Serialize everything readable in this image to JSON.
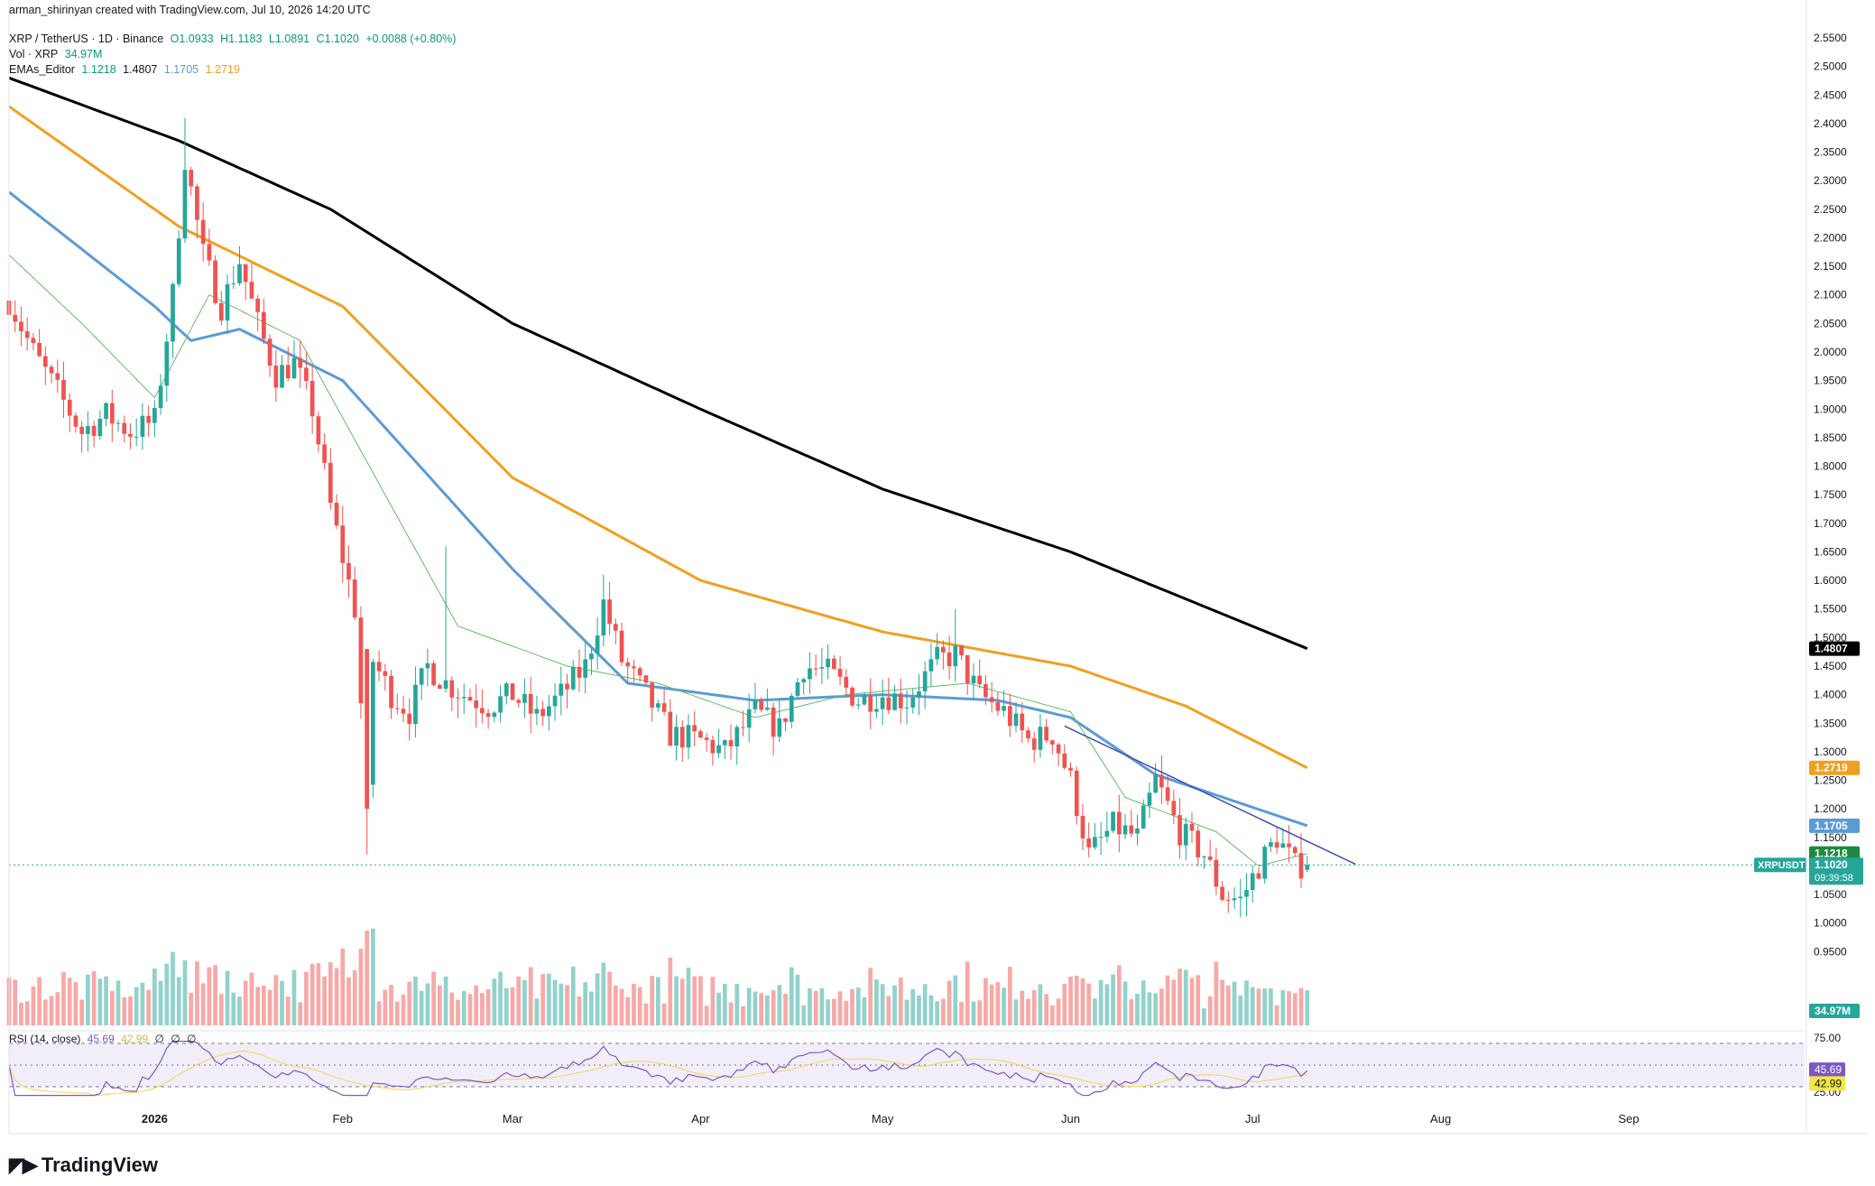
{
  "header": {
    "created_by": "arman_shirinyan created with TradingView.com, Jul 10, 2026 14:20 UTC",
    "symbol": "XRP / TetherUS · 1D · Binance",
    "ohlc": {
      "o": "O1.0933",
      "h": "H1.1183",
      "l": "L1.0891",
      "c": "C1.1020",
      "chg": "+0.0088 (+0.80%)"
    },
    "vol_label": "Vol · XRP",
    "vol_value": "34.97M",
    "emas_label": "EMAs_Editor",
    "emas_values": [
      "1.1218",
      "1.4807",
      "1.1705",
      "1.2719"
    ],
    "rsi_label": "RSI (14, close)",
    "rsi_value": "45.69",
    "rsi_ma_value": "42.99",
    "rsi_extra": [
      "∅",
      "∅",
      "∅"
    ]
  },
  "brand": "TradingView",
  "colors": {
    "up": "#26a69a",
    "down": "#ef5350",
    "ema_black": "#000000",
    "ema_orange": "#f0a020",
    "ema_blue": "#5b9bd5",
    "ema_green": "#66bb6a",
    "rsi": "#7e57c2",
    "rsi_ma": "#f5d76e",
    "trendline": "#3f51b5"
  },
  "chart_data": {
    "type": "candlestick",
    "symbol": "XRPUSDT",
    "price_axis": {
      "min": 0.9,
      "max": 2.55,
      "ticks": [
        "2.5500",
        "2.5000",
        "2.4500",
        "2.4000",
        "2.3500",
        "2.3000",
        "2.2500",
        "2.2000",
        "2.1500",
        "2.1000",
        "2.0500",
        "2.0000",
        "1.9500",
        "1.9000",
        "1.8500",
        "1.8000",
        "1.7500",
        "1.7000",
        "1.6500",
        "1.6000",
        "1.5500",
        "1.5000",
        "1.4500",
        "1.4000",
        "1.3500",
        "1.3000",
        "1.2500",
        "1.2000",
        "1.1500",
        "1.1000",
        "1.0500",
        "1.0000",
        "0.9500"
      ]
    },
    "time_axis": {
      "start": "2025-12-08",
      "end": "2026-09-30",
      "labels": [
        {
          "date": "2026-01-01",
          "label": "2026"
        },
        {
          "date": "2026-02-01",
          "label": "Feb"
        },
        {
          "date": "2026-03-01",
          "label": "Mar"
        },
        {
          "date": "2026-04-01",
          "label": "Apr"
        },
        {
          "date": "2026-05-01",
          "label": "May"
        },
        {
          "date": "2026-06-01",
          "label": "Jun"
        },
        {
          "date": "2026-07-01",
          "label": "Jul"
        },
        {
          "date": "2026-08-01",
          "label": "Aug"
        },
        {
          "date": "2026-09-01",
          "label": "Sep"
        }
      ]
    },
    "close_anchors": [
      [
        "2025-12-08",
        2.09
      ],
      [
        "2025-12-12",
        2.0
      ],
      [
        "2025-12-16",
        1.93
      ],
      [
        "2025-12-20",
        1.86
      ],
      [
        "2025-12-24",
        1.89
      ],
      [
        "2025-12-28",
        1.86
      ],
      [
        "2026-01-01",
        1.88
      ],
      [
        "2026-01-04",
        2.1
      ],
      [
        "2026-01-06",
        2.34
      ],
      [
        "2026-01-09",
        2.17
      ],
      [
        "2026-01-12",
        2.08
      ],
      [
        "2026-01-15",
        2.16
      ],
      [
        "2026-01-18",
        2.05
      ],
      [
        "2026-01-21",
        1.96
      ],
      [
        "2026-01-24",
        1.98
      ],
      [
        "2026-01-27",
        1.9
      ],
      [
        "2026-01-30",
        1.73
      ],
      [
        "2026-02-03",
        1.55
      ],
      [
        "2026-02-05",
        1.22
      ],
      [
        "2026-02-06",
        1.46
      ],
      [
        "2026-02-09",
        1.4
      ],
      [
        "2026-02-12",
        1.37
      ],
      [
        "2026-02-15",
        1.45
      ],
      [
        "2026-02-18",
        1.42
      ],
      [
        "2026-02-21",
        1.4
      ],
      [
        "2026-02-25",
        1.38
      ],
      [
        "2026-03-01",
        1.4
      ],
      [
        "2026-03-05",
        1.36
      ],
      [
        "2026-03-09",
        1.4
      ],
      [
        "2026-03-13",
        1.45
      ],
      [
        "2026-03-16",
        1.56
      ],
      [
        "2026-03-19",
        1.46
      ],
      [
        "2026-03-23",
        1.4
      ],
      [
        "2026-03-27",
        1.33
      ],
      [
        "2026-04-01",
        1.32
      ],
      [
        "2026-04-05",
        1.3
      ],
      [
        "2026-04-10",
        1.37
      ],
      [
        "2026-04-14",
        1.34
      ],
      [
        "2026-04-18",
        1.45
      ],
      [
        "2026-04-22",
        1.44
      ],
      [
        "2026-04-27",
        1.39
      ],
      [
        "2026-05-01",
        1.4
      ],
      [
        "2026-05-05",
        1.39
      ],
      [
        "2026-05-10",
        1.46
      ],
      [
        "2026-05-13",
        1.47
      ],
      [
        "2026-05-17",
        1.4
      ],
      [
        "2026-05-21",
        1.37
      ],
      [
        "2026-05-25",
        1.32
      ],
      [
        "2026-05-29",
        1.33
      ],
      [
        "2026-06-01",
        1.25
      ],
      [
        "2026-06-04",
        1.12
      ],
      [
        "2026-06-08",
        1.17
      ],
      [
        "2026-06-12",
        1.15
      ],
      [
        "2026-06-15",
        1.25
      ],
      [
        "2026-06-19",
        1.16
      ],
      [
        "2026-06-23",
        1.12
      ],
      [
        "2026-06-26",
        1.05
      ],
      [
        "2026-06-29",
        1.04
      ],
      [
        "2026-07-02",
        1.1
      ],
      [
        "2026-07-05",
        1.15
      ],
      [
        "2026-07-08",
        1.1
      ],
      [
        "2026-07-10",
        1.102
      ]
    ],
    "emas": [
      {
        "name": "EMA 200",
        "color": "#000000",
        "value": 1.4807,
        "anchors": [
          [
            "2025-12-08",
            2.48
          ],
          [
            "2026-01-05",
            2.37
          ],
          [
            "2026-01-30",
            2.25
          ],
          [
            "2026-03-01",
            2.05
          ],
          [
            "2026-04-01",
            1.9
          ],
          [
            "2026-05-01",
            1.76
          ],
          [
            "2026-06-01",
            1.65
          ],
          [
            "2026-07-10",
            1.4807
          ]
        ]
      },
      {
        "name": "EMA 100",
        "color": "#f0a020",
        "value": 1.2719,
        "anchors": [
          [
            "2025-12-08",
            2.43
          ],
          [
            "2026-01-05",
            2.22
          ],
          [
            "2026-02-01",
            2.08
          ],
          [
            "2026-03-01",
            1.78
          ],
          [
            "2026-04-01",
            1.6
          ],
          [
            "2026-05-01",
            1.51
          ],
          [
            "2026-06-01",
            1.45
          ],
          [
            "2026-06-20",
            1.38
          ],
          [
            "2026-07-10",
            1.2719
          ]
        ]
      },
      {
        "name": "EMA 50",
        "color": "#5b9bd5",
        "value": 1.1705,
        "anchors": [
          [
            "2025-12-08",
            2.28
          ],
          [
            "2026-01-01",
            2.08
          ],
          [
            "2026-01-07",
            2.02
          ],
          [
            "2026-01-15",
            2.04
          ],
          [
            "2026-02-01",
            1.95
          ],
          [
            "2026-03-01",
            1.62
          ],
          [
            "2026-03-20",
            1.42
          ],
          [
            "2026-04-10",
            1.39
          ],
          [
            "2026-05-01",
            1.4
          ],
          [
            "2026-05-20",
            1.39
          ],
          [
            "2026-06-01",
            1.36
          ],
          [
            "2026-06-15",
            1.26
          ],
          [
            "2026-07-10",
            1.1705
          ]
        ]
      },
      {
        "name": "EMA 20",
        "color": "#66bb6a",
        "value": 1.1218,
        "anchors": [
          [
            "2025-12-08",
            2.17
          ],
          [
            "2025-12-20",
            2.05
          ],
          [
            "2026-01-01",
            1.92
          ],
          [
            "2026-01-10",
            2.1
          ],
          [
            "2026-01-25",
            2.02
          ],
          [
            "2026-02-08",
            1.75
          ],
          [
            "2026-02-20",
            1.52
          ],
          [
            "2026-03-10",
            1.45
          ],
          [
            "2026-03-25",
            1.42
          ],
          [
            "2026-04-10",
            1.36
          ],
          [
            "2026-04-25",
            1.4
          ],
          [
            "2026-05-15",
            1.42
          ],
          [
            "2026-06-01",
            1.37
          ],
          [
            "2026-06-10",
            1.22
          ],
          [
            "2026-06-25",
            1.16
          ],
          [
            "2026-07-02",
            1.1
          ],
          [
            "2026-07-10",
            1.1218
          ]
        ]
      }
    ],
    "trendline": {
      "from": [
        "2026-05-31",
        1.345
      ],
      "to": [
        "2026-07-18",
        1.103
      ]
    },
    "last_price": {
      "symbol": "XRPUSDT",
      "value": "1.1020",
      "countdown": "09:39:58"
    },
    "badges": [
      {
        "value": "1.4807",
        "price": 1.4807,
        "bg": "#000000"
      },
      {
        "value": "1.2719",
        "price": 1.2719,
        "bg": "#f0a020"
      },
      {
        "value": "1.1705",
        "price": 1.1705,
        "bg": "#5b9bd5"
      },
      {
        "value": "1.1218",
        "price": 1.1218,
        "bg": "#1b8a3e"
      }
    ],
    "volume": {
      "last": "34.97M"
    },
    "rsi": {
      "upper": "75.00",
      "lower": "25.00",
      "value": 45.69,
      "ma": 42.99
    }
  }
}
